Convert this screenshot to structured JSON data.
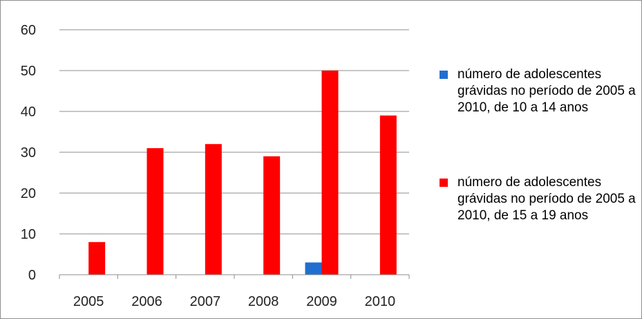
{
  "chart_data": {
    "type": "bar",
    "categories": [
      "2005",
      "2006",
      "2007",
      "2008",
      "2009",
      "2010"
    ],
    "series": [
      {
        "name": "número de adolescentes grávidas no período de 2005 a 2010, de 10 a 14 anos",
        "color": "#1f6fd1",
        "values": [
          0,
          0,
          0,
          0,
          3,
          0
        ]
      },
      {
        "name": "número de adolescentes grávidas no período de 2005 a 2010, de 15 a 19 anos",
        "color": "#ff0000",
        "values": [
          8,
          31,
          32,
          29,
          50,
          39
        ]
      }
    ],
    "yticks": [
      "0",
      "10",
      "20",
      "30",
      "40",
      "50",
      "60"
    ],
    "ylim": [
      0,
      60
    ],
    "grid": true,
    "legend_position": "right",
    "title": "",
    "xlabel": "",
    "ylabel": ""
  }
}
